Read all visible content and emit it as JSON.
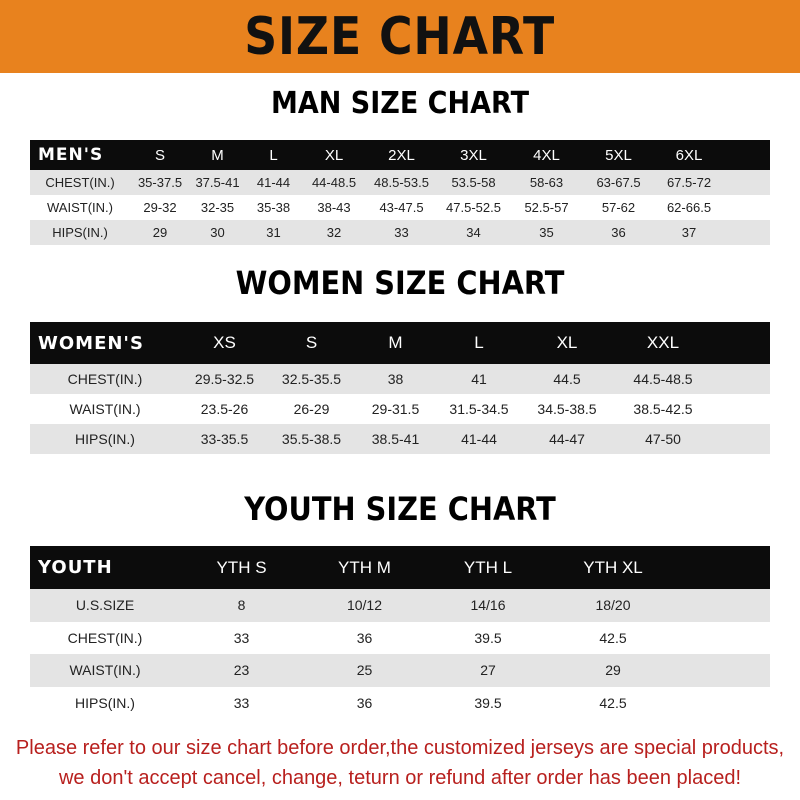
{
  "banner": {
    "title": "SIZE CHART",
    "color": "#e8821e"
  },
  "men": {
    "title": "MAN SIZE CHART",
    "header": [
      "MEN'S",
      "S",
      "M",
      "L",
      "XL",
      "2XL",
      "3XL",
      "4XL",
      "5XL",
      "6XL"
    ],
    "rows": [
      [
        "CHEST(IN.)",
        "35-37.5",
        "37.5-41",
        "41-44",
        "44-48.5",
        "48.5-53.5",
        "53.5-58",
        "58-63",
        "63-67.5",
        "67.5-72"
      ],
      [
        "WAIST(IN.)",
        "29-32",
        "32-35",
        "35-38",
        "38-43",
        "43-47.5",
        "47.5-52.5",
        "52.5-57",
        "57-62",
        "62-66.5"
      ],
      [
        "HIPS(IN.)",
        "29",
        "30",
        "31",
        "32",
        "33",
        "34",
        "35",
        "36",
        "37"
      ]
    ]
  },
  "women": {
    "title": "WOMEN SIZE CHART",
    "header": [
      "WOMEN'S",
      "XS",
      "S",
      "M",
      "L",
      "XL",
      "XXL"
    ],
    "rows": [
      [
        "CHEST(IN.)",
        "29.5-32.5",
        "32.5-35.5",
        "38",
        "41",
        "44.5",
        "44.5-48.5"
      ],
      [
        "WAIST(IN.)",
        "23.5-26",
        "26-29",
        "29-31.5",
        "31.5-34.5",
        "34.5-38.5",
        "38.5-42.5"
      ],
      [
        "HIPS(IN.)",
        "33-35.5",
        "35.5-38.5",
        "38.5-41",
        "41-44",
        "44-47",
        "47-50"
      ]
    ]
  },
  "youth": {
    "title": "YOUTH SIZE CHART",
    "header": [
      "YOUTH",
      "YTH S",
      "YTH M",
      "YTH L",
      "YTH XL"
    ],
    "rows": [
      [
        "U.S.SIZE",
        "8",
        "10/12",
        "14/16",
        "18/20"
      ],
      [
        "CHEST(IN.)",
        "33",
        "36",
        "39.5",
        "42.5"
      ],
      [
        "WAIST(IN.)",
        "23",
        "25",
        "27",
        "29"
      ],
      [
        "HIPS(IN.)",
        "33",
        "36",
        "39.5",
        "42.5"
      ]
    ]
  },
  "footer": {
    "line1": "Please refer to our size chart before order,the customized jerseys are special products,",
    "line2": "we don't accept cancel, change, teturn or refund after order has been placed!",
    "color": "#b8201e"
  }
}
